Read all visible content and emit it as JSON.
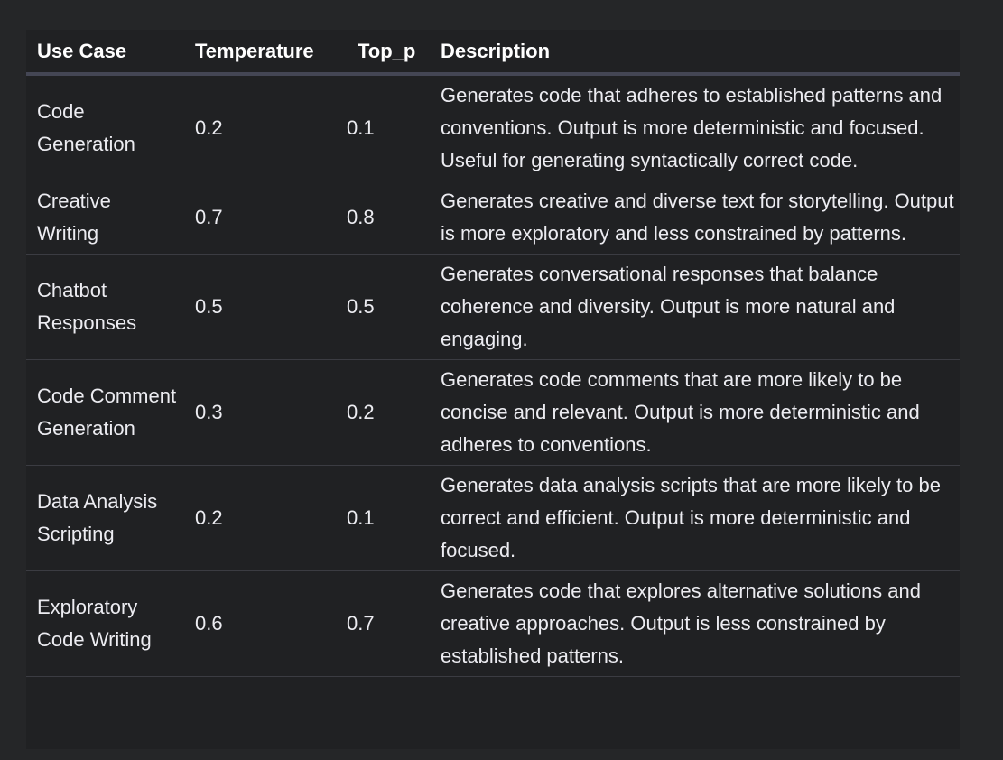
{
  "table": {
    "headers": {
      "use_case": "Use Case",
      "temperature": "Temperature",
      "top_p": "Top_p",
      "description": "Description"
    },
    "rows": [
      {
        "use_case": "Code Generation",
        "temperature": "0.2",
        "top_p": "0.1",
        "description": "Generates code that adheres to established patterns and conventions. Output is more deterministic and focused. Useful for generating syntactically correct code."
      },
      {
        "use_case": "Creative Writing",
        "temperature": "0.7",
        "top_p": "0.8",
        "description": "Generates creative and diverse text for storytelling. Output is more exploratory and less constrained by patterns."
      },
      {
        "use_case": "Chatbot Responses",
        "temperature": "0.5",
        "top_p": "0.5",
        "description": "Generates conversational responses that balance coherence and diversity. Output is more natural and engaging."
      },
      {
        "use_case": "Code Comment Generation",
        "temperature": "0.3",
        "top_p": "0.2",
        "description": "Generates code comments that are more likely to be concise and relevant. Output is more deterministic and adheres to conventions."
      },
      {
        "use_case": "Data Analysis Scripting",
        "temperature": "0.2",
        "top_p": "0.1",
        "description": "Generates data analysis scripts that are more likely to be correct and efficient. Output is more deterministic and focused."
      },
      {
        "use_case": "Exploratory Code Writing",
        "temperature": "0.6",
        "top_p": "0.7",
        "description": "Generates code that explores alternative solutions and creative approaches. Output is less constrained by established patterns."
      }
    ]
  }
}
